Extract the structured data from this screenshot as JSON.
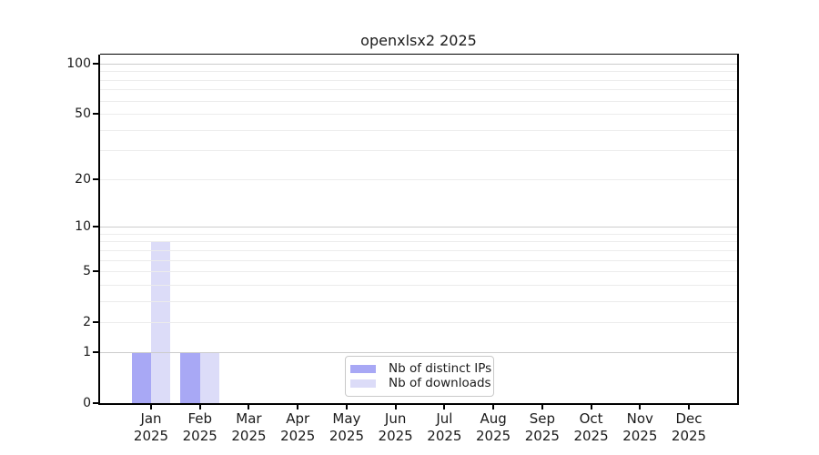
{
  "chart_data": {
    "type": "bar",
    "title": "openxlsx2 2025",
    "categories": [
      "Jan",
      "Feb",
      "Mar",
      "Apr",
      "May",
      "Jun",
      "Jul",
      "Aug",
      "Sep",
      "Oct",
      "Nov",
      "Dec"
    ],
    "x_tick_year": "2025",
    "series": [
      {
        "name": "Nb of distinct IPs",
        "color": "#a8a8f5",
        "values": [
          1,
          1,
          0,
          0,
          0,
          0,
          0,
          0,
          0,
          0,
          0,
          0
        ]
      },
      {
        "name": "Nb of downloads",
        "color": "#dcdcf8",
        "values": [
          8,
          1,
          0,
          0,
          0,
          0,
          0,
          0,
          0,
          0,
          0,
          0
        ]
      }
    ],
    "xlabel": "",
    "ylabel": "",
    "y_axis": {
      "scale": "log1p",
      "ylim": [
        0,
        100
      ],
      "tick_values": [
        0,
        1,
        2,
        5,
        10,
        20,
        50,
        100
      ],
      "major_gridlines": [
        1,
        10,
        100
      ],
      "minor_gridlines": [
        2,
        3,
        4,
        5,
        6,
        7,
        8,
        9,
        20,
        30,
        40,
        50,
        60,
        70,
        80,
        90
      ]
    },
    "grid": true,
    "legend": {
      "position": "bottom-center",
      "entries": [
        "Nb of distinct IPs",
        "Nb of downloads"
      ]
    }
  },
  "colors": {
    "background": "#ffffff",
    "axis": "#000000",
    "major_grid": "#cccccc",
    "minor_grid": "#ececec",
    "text": "#1a1a1a",
    "legend_border": "#c9c9c9",
    "bar_distinct_ips": "#a8a8f5",
    "bar_downloads": "#dcdcf8"
  }
}
